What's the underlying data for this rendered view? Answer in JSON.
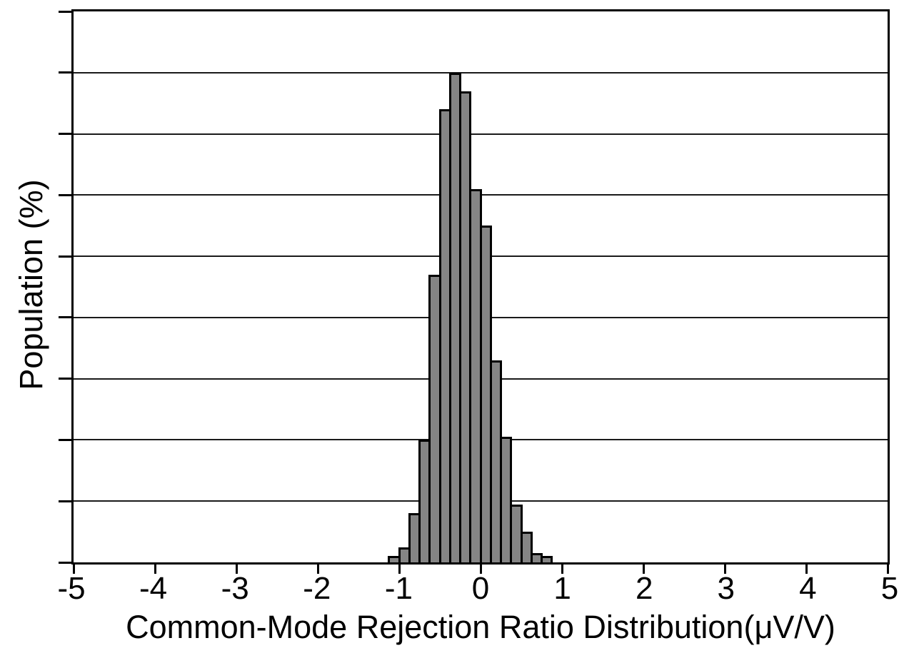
{
  "figure": {
    "background": "#ffffff",
    "bar_fill": "#858585",
    "bar_border": "#000000",
    "axis_color": "#000000",
    "gridline_color": "#1a1a1a"
  },
  "chart_data": {
    "type": "bar",
    "subtype": "histogram",
    "title": "",
    "xlabel": "Common-Mode Rejection Ratio Distribution(μV/V)",
    "ylabel": "Population (%)",
    "xlim": [
      -5,
      5
    ],
    "ylim": [
      0,
      18
    ],
    "x_ticks": [
      "-5",
      "-4",
      "-3",
      "-2",
      "-1",
      "0",
      "1",
      "2",
      "3",
      "4",
      "5"
    ],
    "y_gridline_step": 2,
    "y_tick_labels_visible": false,
    "grid": "horizontal",
    "legend": "none",
    "bin_width": 0.125,
    "bin_start": -1.125,
    "bin_centers": [
      -1.0625,
      -0.9375,
      -0.8125,
      -0.6875,
      -0.5625,
      -0.4375,
      -0.3125,
      -0.1875,
      -0.0625,
      0.0625,
      0.1875,
      0.3125,
      0.4375,
      0.5625,
      0.6875,
      0.8125
    ],
    "values_percent": [
      0.2,
      0.5,
      1.6,
      4.0,
      9.4,
      14.8,
      16.0,
      15.4,
      12.2,
      11.0,
      6.6,
      4.1,
      1.9,
      1.0,
      0.3,
      0.2
    ]
  }
}
